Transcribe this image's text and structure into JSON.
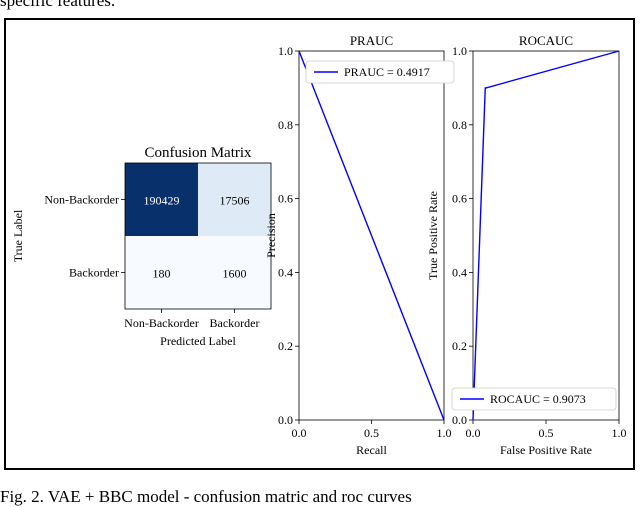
{
  "page": {
    "top_text": "specific features.",
    "caption": "Fig. 2.   VAE + BBC model - confusion matric and roc curves"
  },
  "chart_data": [
    {
      "type": "heatmap",
      "title": "Confusion Matrix",
      "xlabel": "Predicted Label",
      "ylabel": "True Label",
      "x_categories": [
        "Non-Backorder",
        "Backorder"
      ],
      "y_categories": [
        "Non-Backorder",
        "Backorder"
      ],
      "values": [
        [
          190429,
          17506
        ],
        [
          180,
          1600
        ]
      ],
      "colors": {
        "high": "#08306b",
        "mid": "#deebf7",
        "low": "#f7fbff"
      }
    },
    {
      "type": "line",
      "title": "PRAUC",
      "xlabel": "Recall",
      "ylabel": "Precision",
      "xlim": [
        0,
        1
      ],
      "ylim": [
        0,
        1
      ],
      "x_ticks": [
        "0.0",
        "0.5",
        "1.0"
      ],
      "y_ticks": [
        "0.0",
        "0.2",
        "0.4",
        "0.6",
        "0.8",
        "1.0"
      ],
      "legend": "top-right",
      "color": "#0000ff",
      "series": [
        {
          "name": "PRAUC = 0.4917",
          "x": [
            0,
            1
          ],
          "y": [
            1,
            0
          ]
        }
      ]
    },
    {
      "type": "line",
      "title": "ROCAUC",
      "xlabel": "False Positive Rate",
      "ylabel": "True Positive Rate",
      "xlim": [
        0,
        1
      ],
      "ylim": [
        0,
        1
      ],
      "x_ticks": [
        "0.0",
        "0.5",
        "1.0"
      ],
      "y_ticks": [
        "0.0",
        "0.2",
        "0.4",
        "0.6",
        "0.8",
        "1.0"
      ],
      "legend": "bottom-right",
      "color": "#0000ff",
      "series": [
        {
          "name": "ROCAUC = 0.9073",
          "x": [
            0,
            0.084,
            0.09,
            1
          ],
          "y": [
            0,
            0.9,
            0.9,
            1
          ]
        }
      ]
    }
  ]
}
